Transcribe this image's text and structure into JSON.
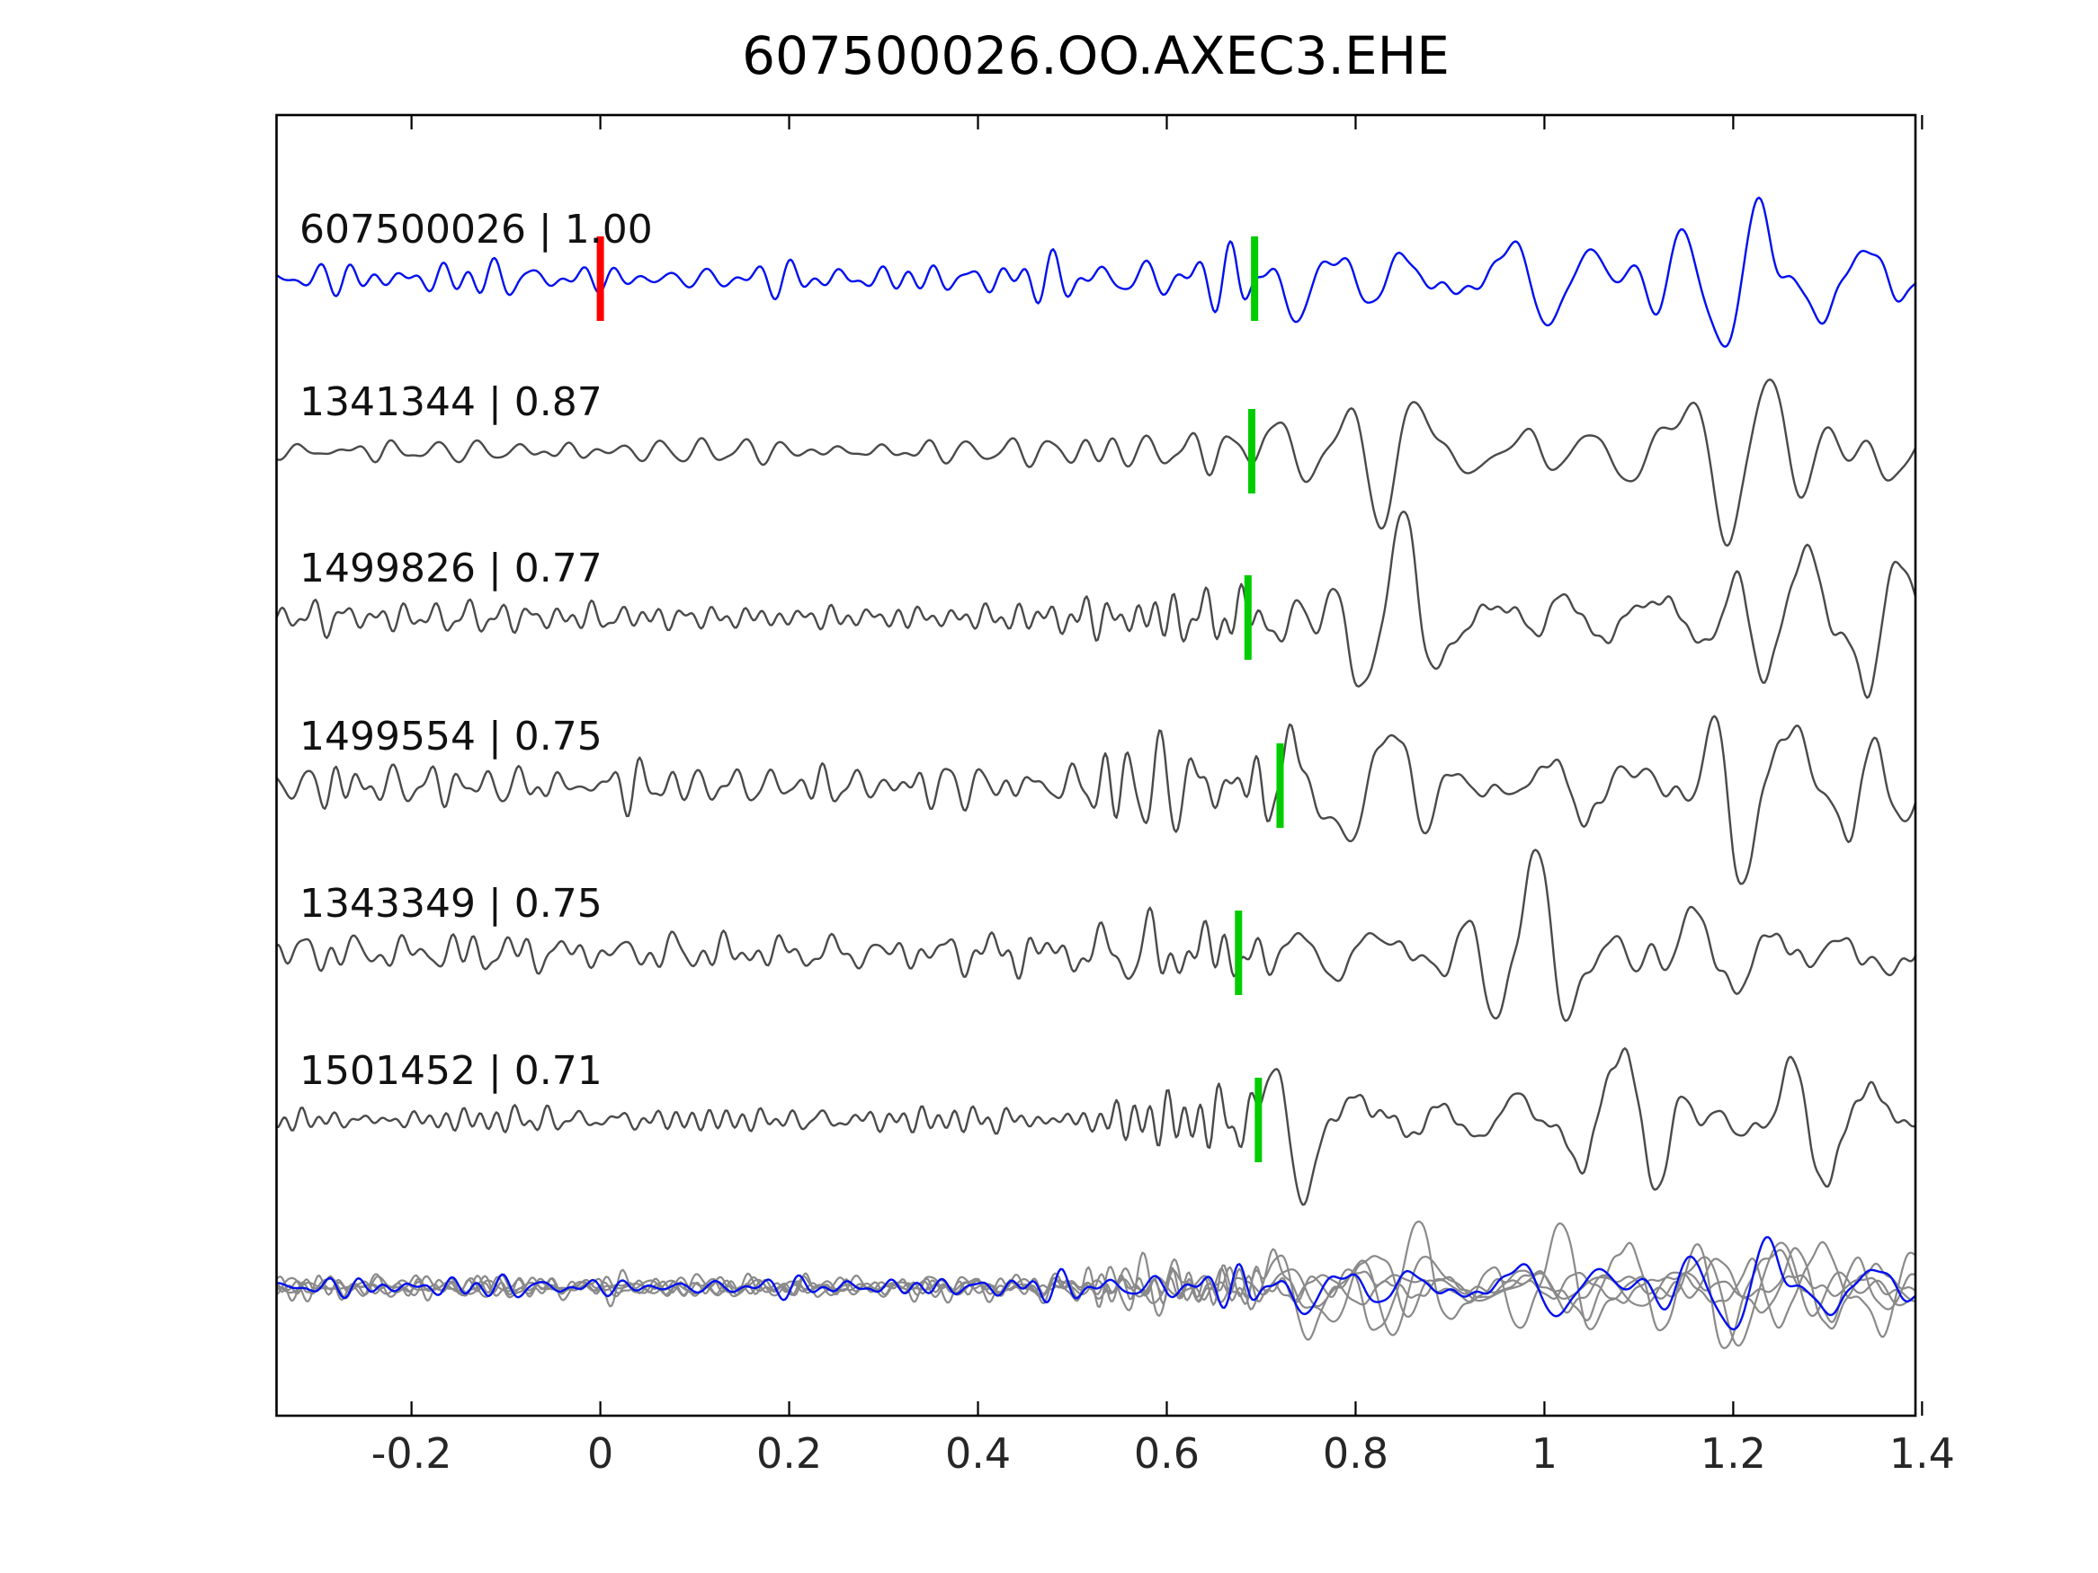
{
  "page": {
    "title": "607500026.OO.AXEC3.EHE"
  },
  "chart_data": {
    "type": "line",
    "title": "607500026.OO.AXEC3.EHE",
    "xlabel": "",
    "ylabel": "",
    "x_range": [
      -0.343,
      1.393
    ],
    "x_ticks": [
      -0.2,
      0,
      0.2,
      0.4,
      0.6,
      0.8,
      1,
      1.2,
      1.4
    ],
    "x_tick_labels": [
      "-0.2",
      "0",
      "0.2",
      "0.4",
      "0.6",
      "0.8",
      "1",
      "1.2",
      "1.4"
    ],
    "grid": false,
    "legend": "none",
    "colors": {
      "reference_trace": "#0010ee",
      "match_trace": "#4a4a4a",
      "overlay_gray": "#8a8a8a",
      "pick_marker": "#00cc00",
      "reference_marker": "#ff0000",
      "axis": "#000000"
    },
    "traces": [
      {
        "id": "607500026",
        "label": "607500026 | 1.00",
        "correlation": 1.0,
        "role": "reference",
        "pick_time": 0.693,
        "red_marker_time": 0.0,
        "seed": 101,
        "arrival": 0.673,
        "noise_amp": 0.14,
        "signal_amp": 0.95
      },
      {
        "id": "1341344",
        "label": "1341344 | 0.87",
        "correlation": 0.87,
        "role": "match",
        "pick_time": 0.69,
        "seed": 202,
        "arrival": 0.67,
        "noise_amp": 0.11,
        "signal_amp": 1.0
      },
      {
        "id": "1499826",
        "label": "1499826 | 0.77",
        "correlation": 0.77,
        "role": "match",
        "pick_time": 0.686,
        "seed": 303,
        "arrival": 0.666,
        "noise_amp": 0.13,
        "signal_amp": 1.0
      },
      {
        "id": "1499554",
        "label": "1499554 | 0.75",
        "correlation": 0.75,
        "role": "match",
        "pick_time": 0.72,
        "seed": 404,
        "arrival": 0.7,
        "noise_amp": 0.21,
        "signal_amp": 1.0
      },
      {
        "id": "1343349",
        "label": "1343349 | 0.75",
        "correlation": 0.75,
        "role": "match",
        "pick_time": 0.676,
        "seed": 505,
        "arrival": 0.656,
        "noise_amp": 0.2,
        "signal_amp": 0.95
      },
      {
        "id": "1501452",
        "label": "1501452 | 0.71",
        "correlation": 0.71,
        "role": "match",
        "pick_time": 0.697,
        "seed": 606,
        "arrival": 0.677,
        "noise_amp": 0.12,
        "signal_amp": 1.0
      }
    ],
    "overlay_row": {
      "description": "all traces superimposed, matches in gray with reference in blue on top",
      "align_time": 0.702,
      "amplitude_scale": 0.62
    }
  }
}
